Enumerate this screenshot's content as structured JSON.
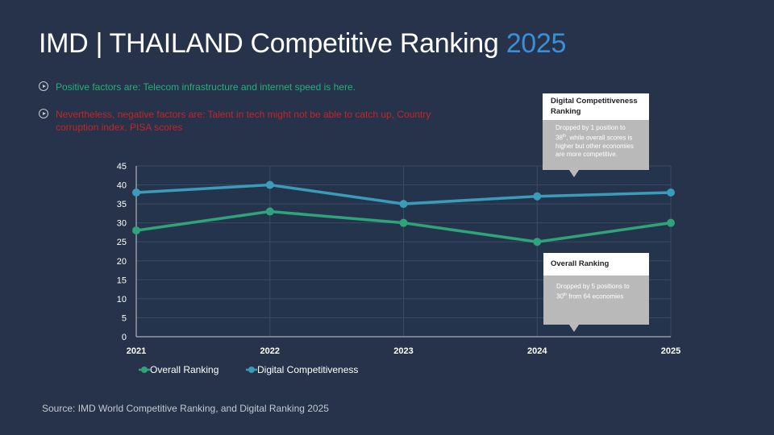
{
  "slide": {
    "title_main": "IMD | THAILAND Competitive Ranking",
    "title_year": "2025",
    "bullets": [
      {
        "text": "Positive factors are: Telecom infrastructure and internet speed is here.",
        "color": "#27b074"
      },
      {
        "text": "Nevertheless, negative factors are: Talent in tech might not be able to catch up, Country corruption index, PISA scores",
        "color": "#c0262b"
      }
    ],
    "source": "Source: IMD World Competitive Ranking, and Digital Ranking 2025"
  },
  "callouts": {
    "digital": {
      "title": "Digital Competitiveness Ranking",
      "body": "Dropped by 1 position to 38th, while overall scores is higher but other economies are more competitive."
    },
    "overall": {
      "title": "Overall Ranking",
      "body": "Dropped by 5 positions to 30th from 64 economies"
    }
  },
  "chart_data": {
    "type": "line",
    "x": [
      "2021",
      "2022",
      "2023",
      "2024",
      "2025"
    ],
    "ylim": [
      0,
      45
    ],
    "yticks": [
      0,
      5,
      10,
      15,
      20,
      25,
      30,
      35,
      40,
      45
    ],
    "grid": true,
    "legend": "bottom-left",
    "series": [
      {
        "name": "Overall Ranking",
        "values": [
          28,
          33,
          30,
          25,
          30
        ],
        "color": "#2fa37a"
      },
      {
        "name": "Digital Competitiveness",
        "values": [
          38,
          40,
          35,
          37,
          38
        ],
        "color": "#3c9bb9"
      }
    ]
  }
}
